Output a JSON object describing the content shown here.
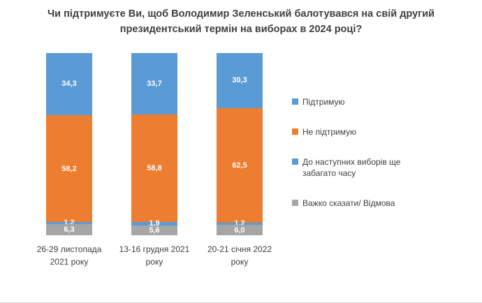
{
  "chart_data": {
    "type": "bar",
    "subtype": "stacked-column-percent",
    "title": "Чи підтримуєте Ви, щоб Володимир Зеленський балотувався на свій другий президентський термін на виборах в 2024 році?",
    "categories": [
      "26-29 листопада 2021 року",
      "13-16 грудня 2021 року",
      "20-21 січня 2022 року"
    ],
    "series": [
      {
        "name": "Підтримую",
        "color": "#5B9BD5",
        "values": [
          34.3,
          33.7,
          30.3
        ]
      },
      {
        "name": "Не підтримую",
        "color": "#ED7D31",
        "values": [
          58.2,
          58.8,
          62.5
        ]
      },
      {
        "name": "До наступних виборів ще забагато часу",
        "color": "#5B9BD5",
        "values": [
          1.2,
          1.9,
          1.2
        ]
      },
      {
        "name": "Важко сказати/ Відмова",
        "color": "#A6A6A6",
        "values": [
          6.3,
          5.6,
          6.0
        ]
      }
    ],
    "value_format": "decimal-comma-1",
    "ylim": [
      0,
      100
    ],
    "grid": false,
    "legend_position": "right",
    "value_label_color": "#ffffff"
  }
}
